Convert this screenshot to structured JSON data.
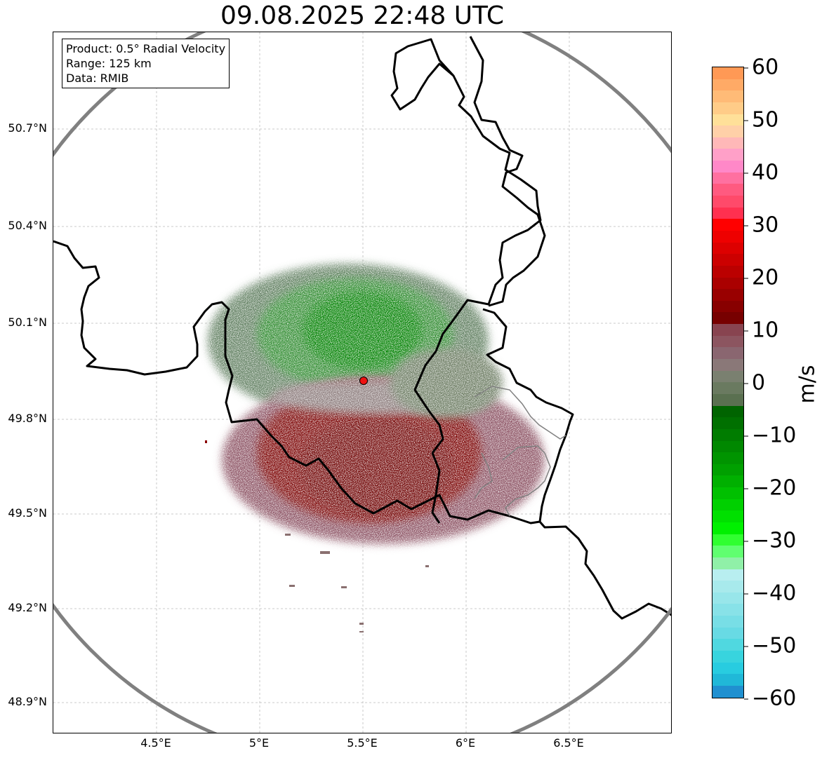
{
  "title": "09.08.2025 22:48 UTC",
  "info": {
    "product": "Product: 0.5° Radial Velocity",
    "range": "Range: 125 km",
    "source": "Data: RMIB"
  },
  "lat_labels": [
    "50.7°N",
    "50.4°N",
    "50.1°N",
    "49.8°N",
    "49.5°N",
    "49.2°N",
    "48.9°N"
  ],
  "lon_labels": [
    "4.5°E",
    "5°E",
    "5.5°E",
    "6°E",
    "6.5°E"
  ],
  "colorbar": {
    "label": "m/s",
    "ticks": [
      "60",
      "50",
      "40",
      "30",
      "20",
      "10",
      "0",
      "−10",
      "−20",
      "−30",
      "−40",
      "−50",
      "−60"
    ],
    "colors": [
      "#ff9955",
      "#ffaa66",
      "#ffbb77",
      "#ffcc88",
      "#ffe099",
      "#ffd0a8",
      "#ffb8b8",
      "#ffa0c8",
      "#ff88c8",
      "#ff70a0",
      "#ff5a80",
      "#ff4a6a",
      "#ff3050",
      "#ff0000",
      "#ee0000",
      "#dd0000",
      "#cc0000",
      "#bb0000",
      "#aa0000",
      "#990000",
      "#880000",
      "#770000",
      "#884450",
      "#8c5560",
      "#8a6670",
      "#8a7878",
      "#7a8070",
      "#6a7a60",
      "#5a7050",
      "#006400",
      "#007000",
      "#007c00",
      "#008800",
      "#009400",
      "#00a000",
      "#00b000",
      "#00c000",
      "#00d000",
      "#00e000",
      "#00f000",
      "#30ff30",
      "#60ff70",
      "#90f0a8",
      "#b8eef0",
      "#a8eaec",
      "#98e6ea",
      "#88e2e8",
      "#78dee6",
      "#68dae4",
      "#50d8e0",
      "#38d4de",
      "#28cce0",
      "#20b8d8",
      "#2090d0"
    ]
  },
  "map": {
    "range_ring_color": "#808080",
    "border_color": "#000000",
    "radar_marker_color": "#ee1111",
    "velocity_colors": {
      "inbound_strong": "#008000",
      "inbound_weak": "#5a7a5a",
      "near_zero": "#8a7070",
      "outbound_weak": "#8c5060",
      "outbound_strong": "#7a0000"
    }
  }
}
